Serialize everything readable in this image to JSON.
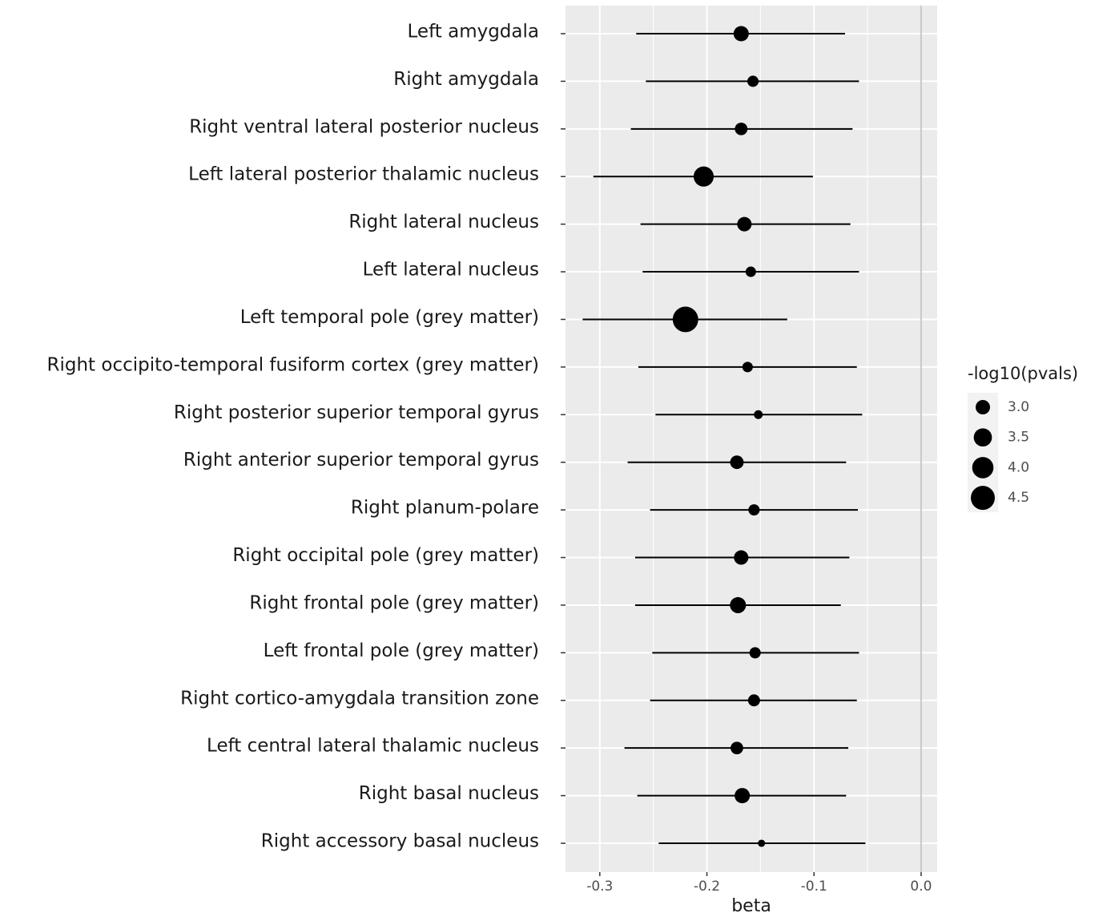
{
  "chart_data": {
    "type": "forest",
    "categories": [
      "Left amygdala",
      "Right amygdala",
      "Right ventral lateral posterior nucleus",
      "Left lateral posterior thalamic nucleus",
      "Right lateral nucleus",
      "Left lateral nucleus",
      "Left temporal pole (grey matter)",
      "Right occipito-temporal fusiform cortex (grey matter)",
      "Right posterior superior temporal gyrus",
      "Right anterior superior temporal gyrus",
      "Right planum-polare",
      "Right occipital pole (grey matter)",
      "Right frontal pole (grey matter)",
      "Left frontal pole (grey matter)",
      "Right cortico-amygdala transition zone",
      "Left central lateral thalamic nucleus",
      "Right basal nucleus",
      "Right accessory basal nucleus"
    ],
    "values": [
      -0.168,
      -0.157,
      -0.168,
      -0.203,
      -0.165,
      -0.159,
      -0.22,
      -0.162,
      -0.152,
      -0.172,
      -0.156,
      -0.168,
      -0.171,
      -0.155,
      -0.156,
      -0.172,
      -0.167,
      -0.149
    ],
    "lower": [
      -0.266,
      -0.257,
      -0.271,
      -0.306,
      -0.262,
      -0.26,
      -0.316,
      -0.264,
      -0.248,
      -0.274,
      -0.253,
      -0.267,
      -0.267,
      -0.251,
      -0.253,
      -0.277,
      -0.265,
      -0.245
    ],
    "upper": [
      -0.071,
      -0.058,
      -0.064,
      -0.101,
      -0.066,
      -0.058,
      -0.125,
      -0.06,
      -0.055,
      -0.07,
      -0.059,
      -0.067,
      -0.075,
      -0.058,
      -0.06,
      -0.068,
      -0.07,
      -0.052
    ],
    "sizes": [
      3.1,
      2.67,
      2.8,
      3.8,
      3.0,
      2.6,
      4.8,
      2.6,
      2.47,
      2.9,
      2.67,
      3.0,
      3.2,
      2.67,
      2.74,
      2.8,
      3.1,
      2.37
    ],
    "color": "#000000",
    "xlabel": "beta",
    "xlim": [
      -0.332,
      0.015
    ],
    "xticks": [
      -0.3,
      -0.2,
      -0.1,
      {
        "value": 0,
        "label": "0.0"
      }
    ],
    "minor_xticks": [
      -0.25,
      -0.15,
      -0.05
    ],
    "xintercept": 0,
    "grid": true,
    "size_legend_title": "-log10(pvals)",
    "size_legend_ticks": [
      {
        "value": 3,
        "label": "3.0"
      },
      3.5,
      {
        "value": 4,
        "label": "4.0"
      },
      4.5
    ]
  }
}
